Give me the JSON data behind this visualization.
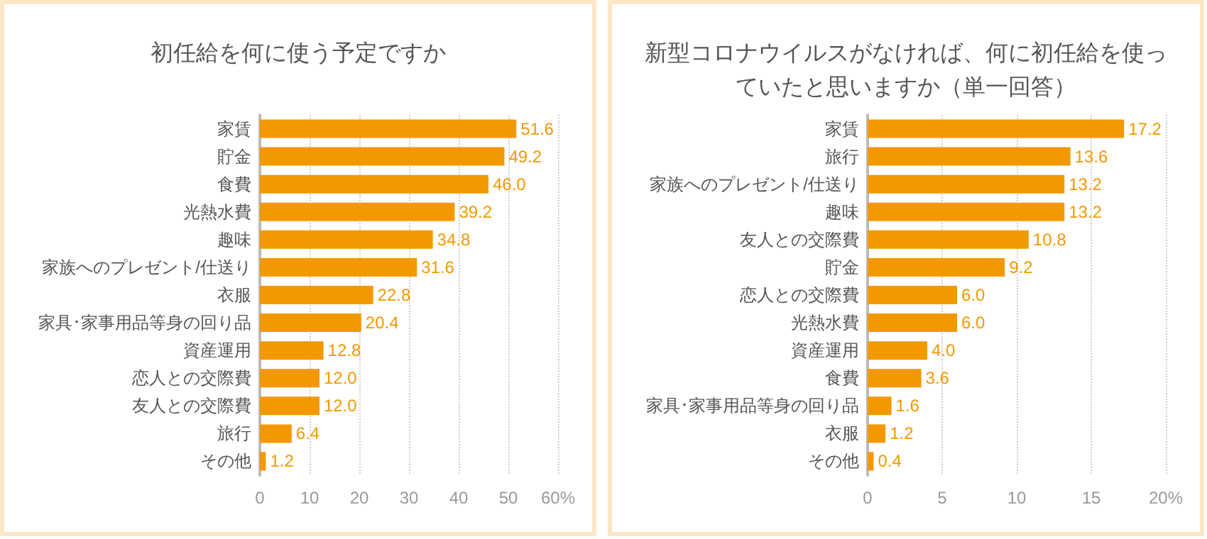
{
  "chart_data": [
    {
      "type": "bar",
      "orientation": "horizontal",
      "title": "初任給を何に使う予定ですか",
      "categories": [
        "家賃",
        "貯金",
        "食費",
        "光熱水費",
        "趣味",
        "家族へのプレゼント/仕送り",
        "衣服",
        "家具･家事用品等身の回り品",
        "資産運用",
        "恋人との交際費",
        "友人との交際費",
        "旅行",
        "その他"
      ],
      "values": [
        51.6,
        49.2,
        46.0,
        39.2,
        34.8,
        31.6,
        22.8,
        20.4,
        12.8,
        12.0,
        12.0,
        6.4,
        1.2
      ],
      "value_labels": [
        "51.6",
        "49.2",
        "46.0",
        "39.2",
        "34.8",
        "31.6",
        "22.8",
        "20.4",
        "12.8",
        "12.0",
        "12.0",
        "6.4",
        "1.2"
      ],
      "color": "#f39800",
      "xlim": [
        0,
        60
      ],
      "xticks": [
        0,
        10,
        20,
        30,
        40,
        50,
        {
          "value": 60,
          "label": "60%"
        }
      ],
      "grid": "x"
    },
    {
      "type": "bar",
      "orientation": "horizontal",
      "title": "新型コロナウイルスがなければ、何に初任給を使っていたと思いますか（単一回答）",
      "categories": [
        "家賃",
        "旅行",
        "家族へのプレゼント/仕送り",
        "趣味",
        "友人との交際費",
        "貯金",
        "恋人との交際費",
        "光熱水費",
        "資産運用",
        "食費",
        "家具･家事用品等身の回り品",
        "衣服",
        "その他"
      ],
      "values": [
        17.2,
        13.6,
        13.2,
        13.2,
        10.8,
        9.2,
        6.0,
        6.0,
        4.0,
        3.6,
        1.6,
        1.2,
        0.4
      ],
      "value_labels": [
        "17.2",
        "13.6",
        "13.2",
        "13.2",
        "10.8",
        "9.2",
        "6.0",
        "6.0",
        "4.0",
        "3.6",
        "1.6",
        "1.2",
        "0.4"
      ],
      "color": "#f39800",
      "xlim": [
        0,
        20
      ],
      "xticks": [
        0,
        5,
        10,
        15,
        {
          "value": 20,
          "label": "20%"
        }
      ],
      "grid": "x"
    }
  ]
}
